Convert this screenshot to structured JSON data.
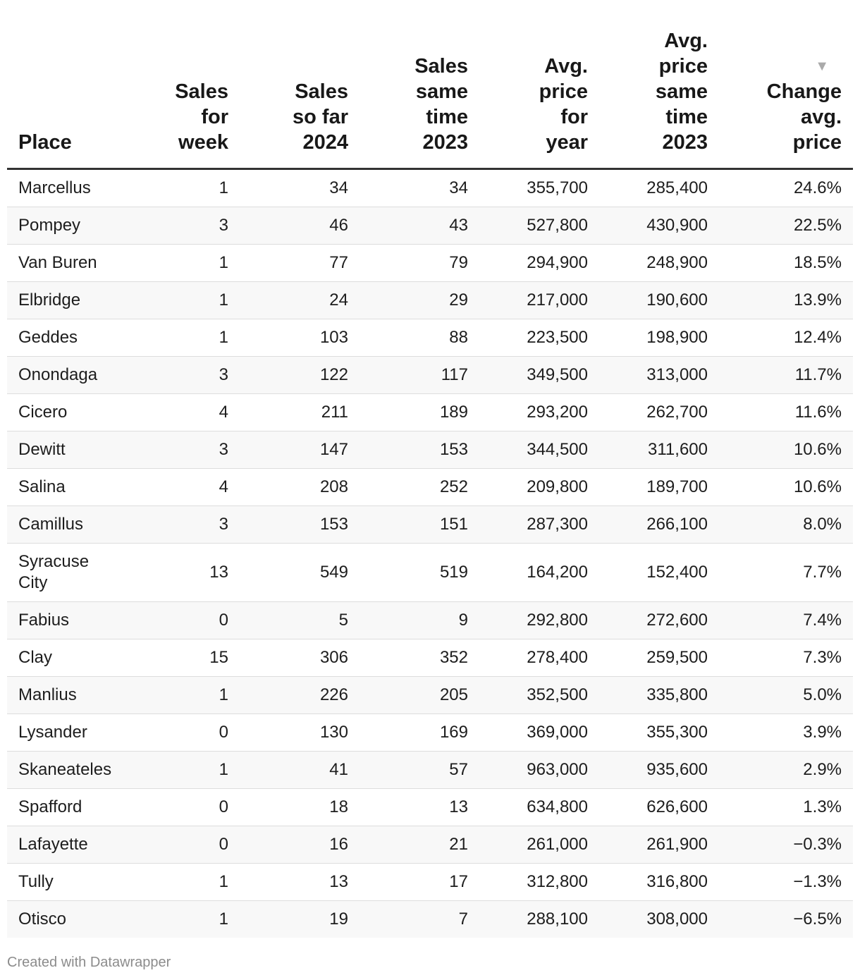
{
  "chart_data": {
    "type": "table",
    "sort": {
      "column": "Change avg. price",
      "direction": "descending"
    },
    "columns": [
      "Place",
      "Sales for week",
      "Sales so far 2024",
      "Sales same time 2023",
      "Avg. price for year",
      "Avg. price same time 2023",
      "Change avg. price"
    ],
    "rows": [
      [
        "Marcellus",
        "1",
        "34",
        "34",
        "355,700",
        "285,400",
        "24.6%"
      ],
      [
        "Pompey",
        "3",
        "46",
        "43",
        "527,800",
        "430,900",
        "22.5%"
      ],
      [
        "Van Buren",
        "1",
        "77",
        "79",
        "294,900",
        "248,900",
        "18.5%"
      ],
      [
        "Elbridge",
        "1",
        "24",
        "29",
        "217,000",
        "190,600",
        "13.9%"
      ],
      [
        "Geddes",
        "1",
        "103",
        "88",
        "223,500",
        "198,900",
        "12.4%"
      ],
      [
        "Onondaga",
        "3",
        "122",
        "117",
        "349,500",
        "313,000",
        "11.7%"
      ],
      [
        "Cicero",
        "4",
        "211",
        "189",
        "293,200",
        "262,700",
        "11.6%"
      ],
      [
        "Dewitt",
        "3",
        "147",
        "153",
        "344,500",
        "311,600",
        "10.6%"
      ],
      [
        "Salina",
        "4",
        "208",
        "252",
        "209,800",
        "189,700",
        "10.6%"
      ],
      [
        "Camillus",
        "3",
        "153",
        "151",
        "287,300",
        "266,100",
        "8.0%"
      ],
      [
        "Syracuse City",
        "13",
        "549",
        "519",
        "164,200",
        "152,400",
        "7.7%"
      ],
      [
        "Fabius",
        "0",
        "5",
        "9",
        "292,800",
        "272,600",
        "7.4%"
      ],
      [
        "Clay",
        "15",
        "306",
        "352",
        "278,400",
        "259,500",
        "7.3%"
      ],
      [
        "Manlius",
        "1",
        "226",
        "205",
        "352,500",
        "335,800",
        "5.0%"
      ],
      [
        "Lysander",
        "0",
        "130",
        "169",
        "369,000",
        "355,300",
        "3.9%"
      ],
      [
        "Skaneateles",
        "1",
        "41",
        "57",
        "963,000",
        "935,600",
        "2.9%"
      ],
      [
        "Spafford",
        "0",
        "18",
        "13",
        "634,800",
        "626,600",
        "1.3%"
      ],
      [
        "Lafayette",
        "0",
        "16",
        "21",
        "261,000",
        "261,900",
        "−0.3%"
      ],
      [
        "Tully",
        "1",
        "13",
        "17",
        "312,800",
        "316,800",
        "−1.3%"
      ],
      [
        "Otisco",
        "1",
        "19",
        "7",
        "288,100",
        "308,000",
        "−6.5%"
      ]
    ]
  },
  "icons": {
    "sort": "sort-descending-icon"
  },
  "footer": {
    "credit": "Created with Datawrapper"
  }
}
